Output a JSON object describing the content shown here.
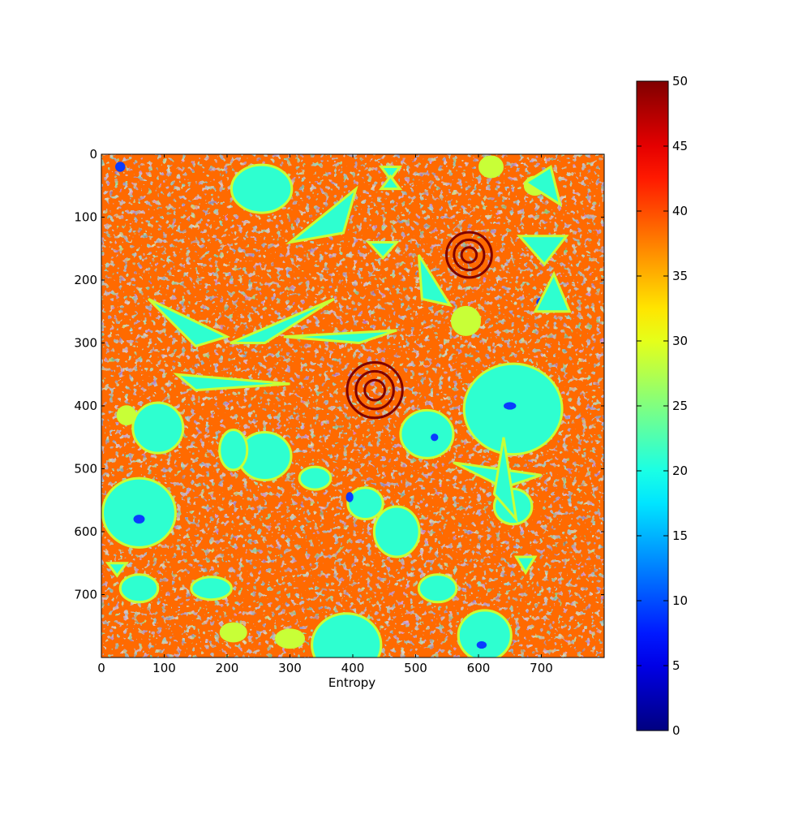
{
  "chart_data": {
    "type": "heatmap",
    "title": "",
    "xlabel": "Entropy",
    "ylabel": "",
    "xlim": [
      0,
      800
    ],
    "ylim": [
      800,
      0
    ],
    "x_ticks": [
      0,
      100,
      200,
      300,
      400,
      500,
      600,
      700
    ],
    "y_ticks": [
      0,
      100,
      200,
      300,
      400,
      500,
      600,
      700
    ],
    "grid": false,
    "colormap": "jet",
    "colorbar": {
      "range": [
        0,
        50
      ],
      "ticks": [
        0,
        5,
        10,
        15,
        20,
        25,
        30,
        35,
        40,
        45,
        50
      ]
    },
    "value_levels": [
      {
        "value": 43,
        "color": "#7f0000"
      },
      {
        "value": 38,
        "color": "#ff6a00"
      },
      {
        "value": 30,
        "color": "#c8ff37"
      },
      {
        "value": 19,
        "color": "#2effd0"
      },
      {
        "value": 8,
        "color": "#0a3cff"
      }
    ],
    "regions": [
      {
        "shape": "ellipse",
        "cx": 255,
        "cy": 55,
        "rx": 48,
        "ry": 38,
        "value": 19
      },
      {
        "shape": "ellipse",
        "cx": 655,
        "cy": 405,
        "rx": 78,
        "ry": 72,
        "value": 19
      },
      {
        "shape": "ellipse",
        "cx": 60,
        "cy": 570,
        "rx": 58,
        "ry": 55,
        "value": 19
      },
      {
        "shape": "ellipse",
        "cx": 90,
        "cy": 435,
        "rx": 40,
        "ry": 40,
        "value": 19
      },
      {
        "shape": "ellipse",
        "cx": 260,
        "cy": 480,
        "rx": 42,
        "ry": 38,
        "value": 19
      },
      {
        "shape": "ellipse",
        "cx": 518,
        "cy": 445,
        "rx": 42,
        "ry": 38,
        "value": 19
      },
      {
        "shape": "ellipse",
        "cx": 390,
        "cy": 780,
        "rx": 55,
        "ry": 50,
        "value": 19
      },
      {
        "shape": "ellipse",
        "cx": 610,
        "cy": 765,
        "rx": 42,
        "ry": 40,
        "value": 19
      },
      {
        "shape": "ellipse",
        "cx": 60,
        "cy": 690,
        "rx": 30,
        "ry": 22,
        "value": 19
      },
      {
        "shape": "ellipse",
        "cx": 420,
        "cy": 555,
        "rx": 28,
        "ry": 25,
        "value": 19
      },
      {
        "shape": "ellipse",
        "cx": 655,
        "cy": 560,
        "rx": 30,
        "ry": 28,
        "value": 19
      },
      {
        "shape": "ellipse",
        "cx": 535,
        "cy": 690,
        "rx": 30,
        "ry": 22,
        "value": 19
      },
      {
        "shape": "ellipse",
        "cx": 175,
        "cy": 690,
        "rx": 32,
        "ry": 18,
        "value": 19
      },
      {
        "shape": "ellipse",
        "cx": 470,
        "cy": 600,
        "rx": 36,
        "ry": 40,
        "value": 19
      },
      {
        "shape": "ellipse",
        "cx": 210,
        "cy": 470,
        "rx": 22,
        "ry": 32,
        "value": 19
      },
      {
        "shape": "ellipse",
        "cx": 340,
        "cy": 515,
        "rx": 25,
        "ry": 18,
        "value": 19
      },
      {
        "shape": "ellipse",
        "cx": 580,
        "cy": 265,
        "rx": 22,
        "ry": 22,
        "value": 30
      },
      {
        "shape": "ellipse",
        "cx": 40,
        "cy": 415,
        "rx": 14,
        "ry": 14,
        "value": 30
      },
      {
        "shape": "ellipse",
        "cx": 620,
        "cy": 20,
        "rx": 18,
        "ry": 16,
        "value": 30
      },
      {
        "shape": "ellipse",
        "cx": 210,
        "cy": 760,
        "rx": 20,
        "ry": 14,
        "value": 30
      },
      {
        "shape": "ellipse",
        "cx": 300,
        "cy": 770,
        "rx": 22,
        "ry": 14,
        "value": 30
      },
      {
        "shape": "ellipse",
        "cx": 690,
        "cy": 50,
        "rx": 16,
        "ry": 14,
        "value": 30
      },
      {
        "shape": "ellipse",
        "cx": 650,
        "cy": 400,
        "rx": 10,
        "ry": 6,
        "value": 8
      },
      {
        "shape": "ellipse",
        "cx": 30,
        "cy": 20,
        "rx": 8,
        "ry": 8,
        "value": 8
      },
      {
        "shape": "ellipse",
        "cx": 395,
        "cy": 545,
        "rx": 6,
        "ry": 8,
        "value": 8
      },
      {
        "shape": "ellipse",
        "cx": 60,
        "cy": 580,
        "rx": 9,
        "ry": 7,
        "value": 8
      },
      {
        "shape": "ellipse",
        "cx": 605,
        "cy": 780,
        "rx": 8,
        "ry": 6,
        "value": 8
      },
      {
        "shape": "ellipse",
        "cx": 700,
        "cy": 235,
        "rx": 8,
        "ry": 7,
        "value": 8
      },
      {
        "shape": "ellipse",
        "cx": 530,
        "cy": 450,
        "rx": 6,
        "ry": 6,
        "value": 8
      },
      {
        "shape": "polygon",
        "points": [
          [
            300,
            140
          ],
          [
            405,
            55
          ],
          [
            385,
            125
          ]
        ],
        "value": 19
      },
      {
        "shape": "polygon",
        "points": [
          [
            505,
            160
          ],
          [
            555,
            240
          ],
          [
            510,
            230
          ]
        ],
        "value": 19
      },
      {
        "shape": "polygon",
        "points": [
          [
            665,
            130
          ],
          [
            740,
            130
          ],
          [
            705,
            175
          ]
        ],
        "value": 19
      },
      {
        "shape": "polygon",
        "points": [
          [
            720,
            190
          ],
          [
            745,
            250
          ],
          [
            690,
            250
          ]
        ],
        "value": 19
      },
      {
        "shape": "polygon",
        "points": [
          [
            730,
            80
          ],
          [
            715,
            20
          ],
          [
            675,
            45
          ]
        ],
        "value": 19
      },
      {
        "shape": "polygon",
        "points": [
          [
            425,
            140
          ],
          [
            470,
            140
          ],
          [
            448,
            165
          ]
        ],
        "value": 19
      },
      {
        "shape": "polygon",
        "points": [
          [
            445,
            20
          ],
          [
            475,
            20
          ],
          [
            460,
            40
          ]
        ],
        "value": 19
      },
      {
        "shape": "polygon",
        "points": [
          [
            445,
            55
          ],
          [
            475,
            55
          ],
          [
            460,
            35
          ]
        ],
        "value": 19
      },
      {
        "shape": "polygon",
        "points": [
          [
            560,
            490
          ],
          [
            700,
            510
          ],
          [
            640,
            530
          ]
        ],
        "value": 19
      },
      {
        "shape": "polygon",
        "points": [
          [
            640,
            450
          ],
          [
            660,
            580
          ],
          [
            625,
            540
          ]
        ],
        "value": 19
      },
      {
        "shape": "polygon",
        "points": [
          [
            120,
            350
          ],
          [
            300,
            365
          ],
          [
            150,
            375
          ]
        ],
        "value": 19
      },
      {
        "shape": "polygon",
        "points": [
          [
            75,
            230
          ],
          [
            200,
            290
          ],
          [
            150,
            305
          ]
        ],
        "value": 19
      },
      {
        "shape": "polygon",
        "points": [
          [
            205,
            300
          ],
          [
            370,
            230
          ],
          [
            260,
            300
          ]
        ],
        "value": 19
      },
      {
        "shape": "polygon",
        "points": [
          [
            290,
            290
          ],
          [
            470,
            280
          ],
          [
            410,
            300
          ]
        ],
        "value": 19
      },
      {
        "shape": "polygon",
        "points": [
          [
            10,
            650
          ],
          [
            40,
            650
          ],
          [
            25,
            670
          ]
        ],
        "value": 19
      },
      {
        "shape": "polygon",
        "points": [
          [
            660,
            640
          ],
          [
            690,
            640
          ],
          [
            675,
            665
          ]
        ],
        "value": 19
      }
    ],
    "rings": [
      {
        "cx": 435,
        "cy": 375,
        "radii": [
          16,
          30,
          44
        ],
        "value": 38,
        "outline": 43
      },
      {
        "cx": 585,
        "cy": 160,
        "radii": [
          12,
          24,
          36
        ],
        "value": 38,
        "outline": 43
      }
    ]
  }
}
